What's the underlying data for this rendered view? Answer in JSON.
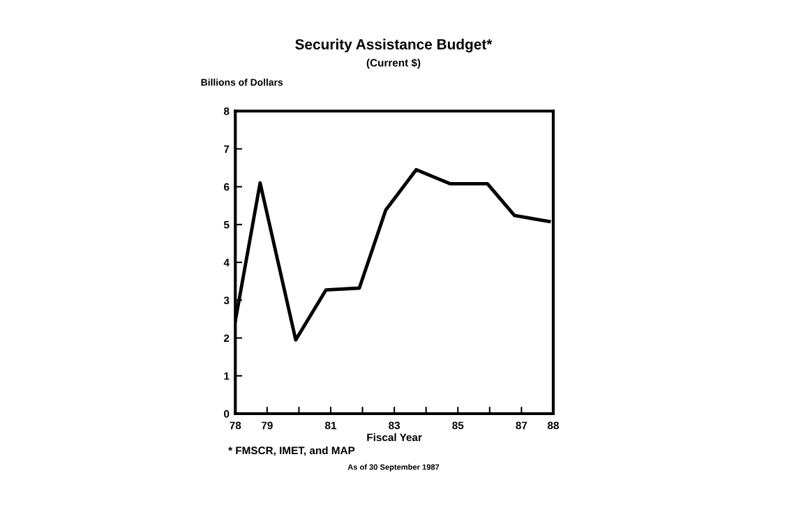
{
  "chart_data": {
    "type": "line",
    "title": "Security Assistance Budget*",
    "subtitle": "(Current $)",
    "ylabel": "Billions of Dollars",
    "xlabel": "Fiscal Year",
    "x": [
      78.0,
      78.78,
      79.9,
      80.85,
      81.9,
      82.73,
      83.69,
      84.75,
      85.93,
      86.78,
      87.87
    ],
    "series": [
      {
        "color": "#000000",
        "values": [
          2.45,
          6.1,
          1.95,
          3.27,
          3.32,
          5.38,
          6.45,
          6.08,
          6.08,
          5.24,
          5.08
        ]
      }
    ],
    "xlim": [
      78,
      88
    ],
    "xticks": [
      78,
      79,
      {
        "value": 80,
        "label": null
      },
      81,
      {
        "value": 82,
        "label": null
      },
      83,
      {
        "value": 84,
        "label": null
      },
      85,
      {
        "value": 86,
        "label": null
      },
      87,
      88
    ],
    "ylim": [
      0,
      8
    ],
    "yticks": [
      0,
      1,
      2,
      3,
      4,
      5,
      6,
      7,
      8
    ],
    "grid": false,
    "marker": "none",
    "line_style": "solid",
    "annotations": [
      "* FMSCR, IMET, and MAP",
      "As of 30 September 1987"
    ]
  }
}
